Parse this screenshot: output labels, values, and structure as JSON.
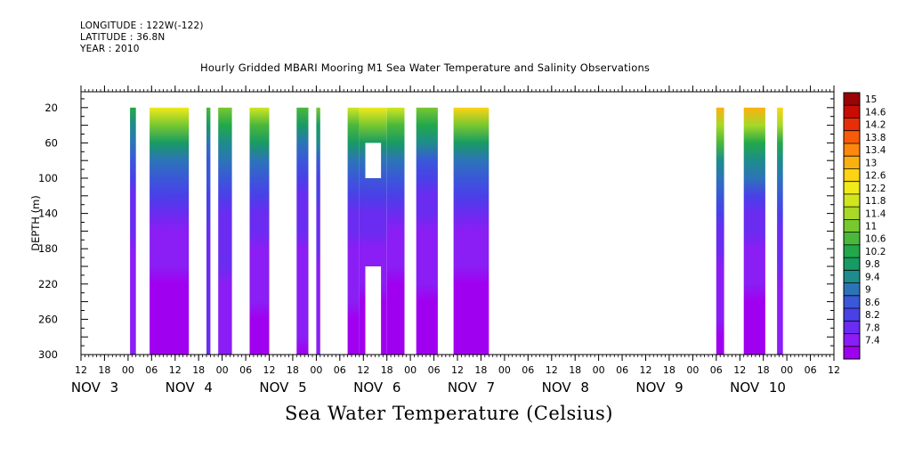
{
  "header": {
    "longitude": "LONGITUDE : 122W(-122)",
    "latitude": "LATITUDE : 36.8N",
    "year": "YEAR : 2010"
  },
  "chart_data": {
    "type": "heatmap",
    "title": "Hourly Gridded MBARI Mooring M1 Sea Water Temperature and Salinity Observations",
    "subtitle": "Sea Water Temperature (Celsius)",
    "ylabel": "DEPTH (m)",
    "y_ticks": [
      20,
      60,
      100,
      140,
      180,
      220,
      260,
      300
    ],
    "ylim": [
      300,
      20
    ],
    "y_reversed": true,
    "x_unit": "hours since Nov 3 00:00 (time axis)",
    "xlim": [
      -12,
      180
    ],
    "x_tick_labels": [
      "12",
      "18",
      "00",
      "06",
      "12",
      "18",
      "00",
      "06",
      "12",
      "18",
      "00",
      "06",
      "12",
      "18",
      "00",
      "06",
      "12",
      "18",
      "00",
      "06",
      "12",
      "18",
      "00",
      "06",
      "12",
      "18",
      "00",
      "06",
      "12",
      "18",
      "00",
      "06",
      "12"
    ],
    "day_labels": [
      {
        "label": "NOV 3",
        "hour": 0
      },
      {
        "label": "NOV 4",
        "hour": 24
      },
      {
        "label": "NOV 5",
        "hour": 48
      },
      {
        "label": "NOV 6",
        "hour": 72
      },
      {
        "label": "NOV 7",
        "hour": 96
      },
      {
        "label": "NOV 8",
        "hour": 120
      },
      {
        "label": "NOV 9",
        "hour": 144
      },
      {
        "label": "NOV 10",
        "hour": 168
      }
    ],
    "colorbar": {
      "labels": [
        "15",
        "14.6",
        "14.2",
        "13.8",
        "13.4",
        "13",
        "12.6",
        "12.2",
        "11.8",
        "11.4",
        "11",
        "10.6",
        "10.2",
        "9.8",
        "9.4",
        "9",
        "8.6",
        "8.2",
        "7.8",
        "7.4"
      ],
      "min": 7.4,
      "max": 15.2,
      "colors": [
        "#a000f0",
        "#8a1ef4",
        "#6a2cf0",
        "#4a40e8",
        "#3a58d8",
        "#2c74b8",
        "#1e8c8c",
        "#189a64",
        "#22a84a",
        "#4ab83a",
        "#78c830",
        "#a8d828",
        "#d2e620",
        "#f0ea1a",
        "#fcd414",
        "#fcb010",
        "#fc880c",
        "#f85c08",
        "#e82e06",
        "#c80c04",
        "#9a0404"
      ]
    },
    "segments": [
      {
        "start": 0.5,
        "end": 2,
        "surface": 10.6,
        "bottom": 7.8
      },
      {
        "start": 5.5,
        "end": 15.5,
        "surface": 12.4,
        "bottom": 7.4
      },
      {
        "start": 20,
        "end": 21,
        "surface": 10.8,
        "bottom": 8.1
      },
      {
        "start": 23,
        "end": 26.5,
        "surface": 11.2,
        "bottom": 7.9
      },
      {
        "start": 31,
        "end": 36,
        "surface": 12.2,
        "bottom": 7.6
      },
      {
        "start": 43,
        "end": 46,
        "surface": 11.0,
        "bottom": 7.7
      },
      {
        "start": 48,
        "end": 49,
        "surface": 11.2,
        "bottom": 7.8
      },
      {
        "start": 56,
        "end": 59,
        "surface": 12.2,
        "bottom": 7.6
      },
      {
        "start": 59,
        "end": 66,
        "surface": 12.4,
        "bottom": 7.5
      },
      {
        "start": 66,
        "end": 70.5,
        "surface": 12.2,
        "bottom": 7.5
      },
      {
        "start": 73.5,
        "end": 79,
        "surface": 11.4,
        "bottom": 7.6
      },
      {
        "start": 83,
        "end": 92,
        "surface": 12.6,
        "bottom": 7.4
      },
      {
        "start": 150,
        "end": 152,
        "surface": 13.2,
        "bottom": 7.6
      },
      {
        "start": 157,
        "end": 162.5,
        "surface": 13.1,
        "bottom": 7.5
      },
      {
        "start": 165.5,
        "end": 167,
        "surface": 12.8,
        "bottom": 7.8
      }
    ],
    "gaps": [
      {
        "start": 60.5,
        "end": 64.5,
        "top": 60,
        "bottom": 100
      },
      {
        "start": 60.5,
        "end": 64.5,
        "top": 200,
        "bottom": 300
      }
    ]
  }
}
